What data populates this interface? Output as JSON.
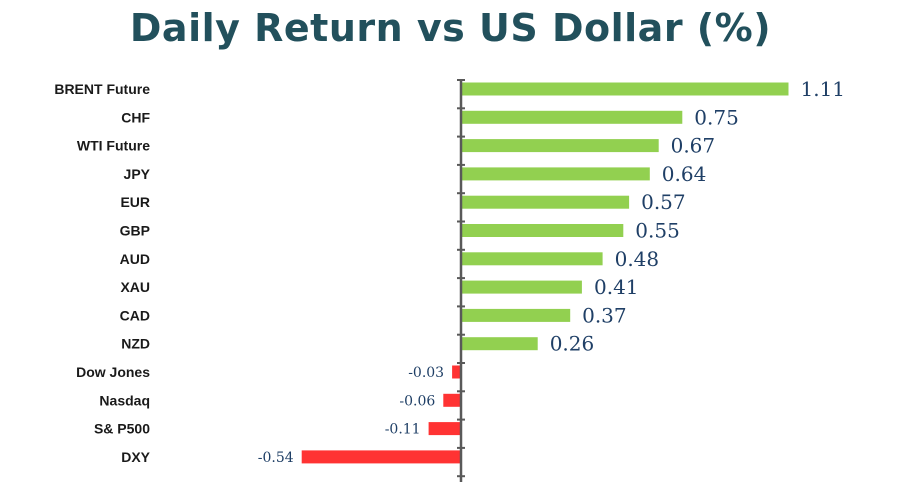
{
  "chart_data": {
    "type": "bar",
    "orientation": "horizontal",
    "title": "Daily Return vs US Dollar (%)",
    "categories": [
      "BRENT Future",
      "CHF",
      "WTI Future",
      "JPY",
      "EUR",
      "GBP",
      "AUD",
      "XAU",
      "CAD",
      "NZD",
      "Dow Jones",
      "Nasdaq",
      "S& P500",
      "DXY"
    ],
    "values": [
      1.11,
      0.75,
      0.67,
      0.64,
      0.57,
      0.55,
      0.48,
      0.41,
      0.37,
      0.26,
      -0.03,
      -0.06,
      -0.11,
      -0.54
    ],
    "value_labels": [
      "1.11",
      "0.75",
      "0.67",
      "0.64",
      "0.57",
      "0.55",
      "0.48",
      "0.41",
      "0.37",
      "0.26",
      "-0.03",
      "-0.06",
      "-0.11",
      "-0.54"
    ],
    "xlim": [
      -0.54,
      1.11
    ],
    "grid": false,
    "legend": "none",
    "colors": {
      "positive": "#92d050",
      "negative": "#ff3333",
      "axis": "#595959",
      "title": "#22505c",
      "value_text": "#1f3f66"
    }
  }
}
